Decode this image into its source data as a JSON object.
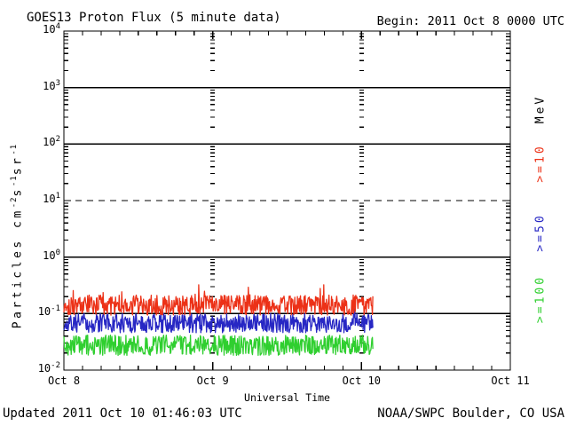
{
  "footer": {
    "updated": "Updated 2011 Oct 10 01:46:03 UTC",
    "source": "NOAA/SWPC Boulder, CO USA"
  },
  "chart_data": {
    "type": "line",
    "title": "GOES13 Proton Flux (5 minute data)",
    "begin_label": "Begin: 2011 Oct 8 0000 UTC",
    "xlabel": "Universal Time",
    "ylabel_parts": [
      {
        "text": "Particles cm"
      },
      {
        "sup": "-2"
      },
      {
        "text": "s"
      },
      {
        "sup": "-1"
      },
      {
        "text": "sr"
      },
      {
        "sup": "-1"
      }
    ],
    "y_tick_base": "10",
    "y_tick_exponents": [
      4,
      3,
      2,
      1,
      0,
      -1,
      -2
    ],
    "y_scale": "log10",
    "y_exponent_range": [
      -2,
      4
    ],
    "grid_solid_exponents": [
      3,
      2,
      0,
      -1
    ],
    "grid_dashed_exponents": [
      1
    ],
    "x_tick_labels": [
      "Oct 8",
      "Oct 9",
      "Oct 10",
      "Oct 11"
    ],
    "x_range_days": 3,
    "x_minor_ticks_per_day": 8,
    "day_boundary_gridlines_days": [
      1,
      2
    ],
    "right_axis_unit_label": "MeV",
    "points_per_day": 288,
    "series": [
      {
        "name": "Proton flux >=10 MeV",
        "threshold_label": ">=10",
        "color": "#ec3117",
        "log10_mean": -0.85,
        "log10_amplitude": 0.18,
        "spike_probability": 0.035,
        "spike_log10_max": 0.32,
        "typical_flux_range": [
          0.09,
          0.22
        ],
        "peak_flux": 0.35,
        "start_day": 0,
        "end_day": 2.075
      },
      {
        "name": "Proton flux >=50 MeV",
        "threshold_label": ">=50",
        "color": "#2727c4",
        "log10_mean": -1.17,
        "log10_amplitude": 0.17,
        "spike_probability": 0.02,
        "spike_log10_max": 0.2,
        "typical_flux_range": [
          0.045,
          0.1
        ],
        "peak_flux": 0.13,
        "start_day": 0,
        "end_day": 2.075
      },
      {
        "name": "Proton flux >=100 MeV",
        "threshold_label": ">=100",
        "color": "#2fcf2f",
        "log10_mean": -1.56,
        "log10_amplitude": 0.18,
        "spike_probability": 0.0,
        "spike_log10_max": 0,
        "typical_flux_range": [
          0.018,
          0.045
        ],
        "peak_flux": 0.05,
        "start_day": 0,
        "end_day": 2.075
      }
    ]
  }
}
